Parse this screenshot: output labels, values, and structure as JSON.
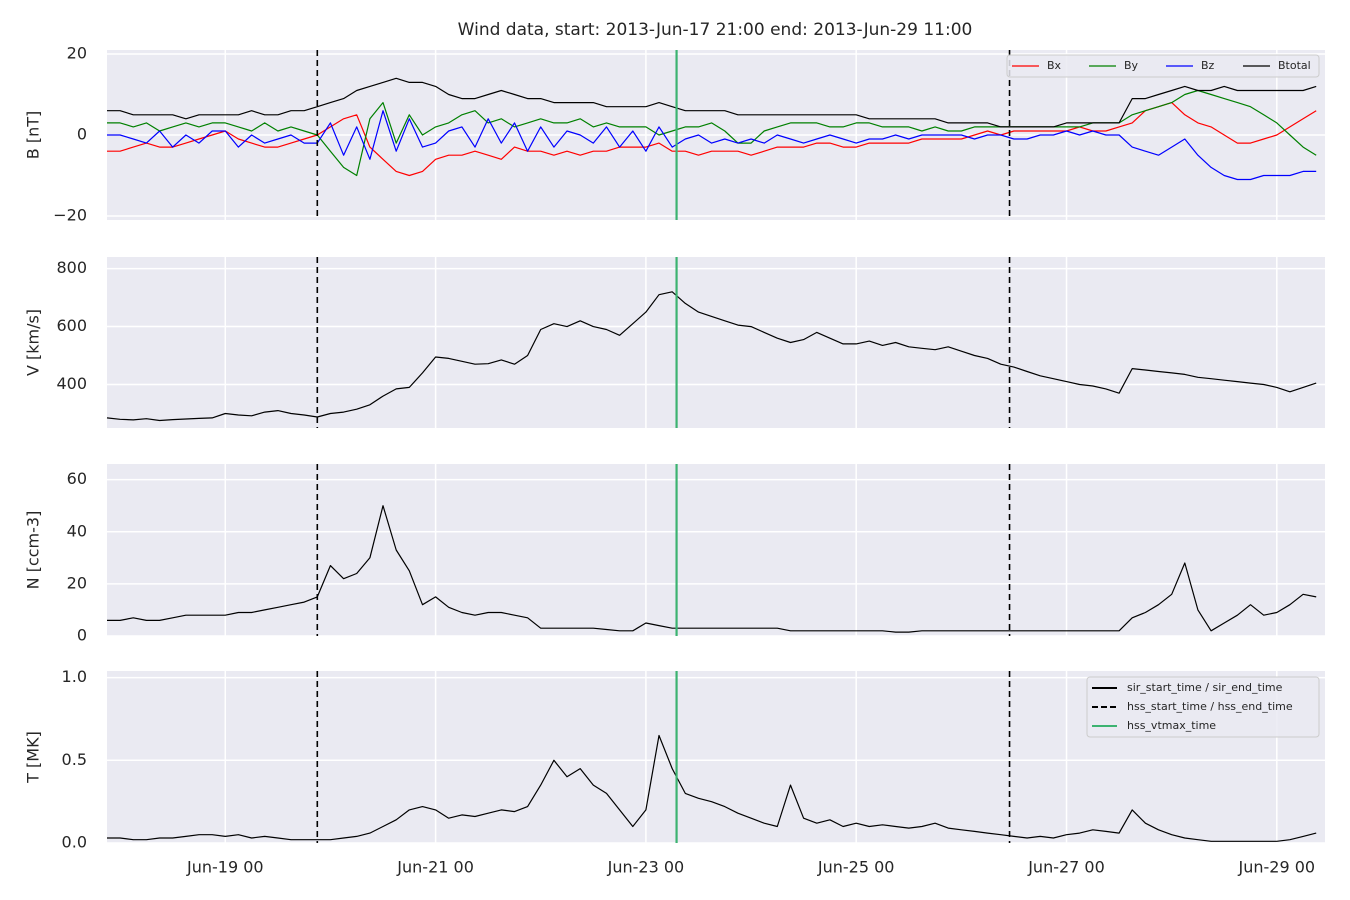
{
  "chart_data": {
    "type": "line",
    "title": "Wind data, start: 2013-Jun-17 21:00  end: 2013-Jun-29 11:00",
    "x": [
      "Jun-17 21",
      "Jun-18 00",
      "Jun-18 03",
      "Jun-18 06",
      "Jun-18 09",
      "Jun-18 12",
      "Jun-18 15",
      "Jun-18 18",
      "Jun-18 21",
      "Jun-19 00",
      "Jun-19 03",
      "Jun-19 06",
      "Jun-19 09",
      "Jun-19 12",
      "Jun-19 15",
      "Jun-19 18",
      "Jun-19 21",
      "Jun-20 00",
      "Jun-20 03",
      "Jun-20 06",
      "Jun-20 09",
      "Jun-20 12",
      "Jun-20 15",
      "Jun-20 18",
      "Jun-20 21",
      "Jun-21 00",
      "Jun-21 03",
      "Jun-21 06",
      "Jun-21 09",
      "Jun-21 12",
      "Jun-21 15",
      "Jun-21 18",
      "Jun-21 21",
      "Jun-22 00",
      "Jun-22 03",
      "Jun-22 06",
      "Jun-22 09",
      "Jun-22 12",
      "Jun-22 15",
      "Jun-22 18",
      "Jun-22 21",
      "Jun-23 00",
      "Jun-23 03",
      "Jun-23 06",
      "Jun-23 09",
      "Jun-23 12",
      "Jun-23 15",
      "Jun-23 18",
      "Jun-23 21",
      "Jun-24 00",
      "Jun-24 03",
      "Jun-24 06",
      "Jun-24 09",
      "Jun-24 12",
      "Jun-24 15",
      "Jun-24 18",
      "Jun-24 21",
      "Jun-25 00",
      "Jun-25 03",
      "Jun-25 06",
      "Jun-25 09",
      "Jun-25 12",
      "Jun-25 15",
      "Jun-25 18",
      "Jun-25 21",
      "Jun-26 00",
      "Jun-26 03",
      "Jun-26 06",
      "Jun-26 09",
      "Jun-26 12",
      "Jun-26 15",
      "Jun-26 18",
      "Jun-26 21",
      "Jun-27 00",
      "Jun-27 03",
      "Jun-27 06",
      "Jun-27 09",
      "Jun-27 12",
      "Jun-27 15",
      "Jun-27 18",
      "Jun-27 21",
      "Jun-28 00",
      "Jun-28 03",
      "Jun-28 06",
      "Jun-28 09",
      "Jun-28 12",
      "Jun-28 15",
      "Jun-28 18",
      "Jun-28 21",
      "Jun-29 00",
      "Jun-29 03",
      "Jun-29 06",
      "Jun-29 09"
    ],
    "xlim": [
      "Jun-17 21",
      "Jun-29 11"
    ],
    "xticks": [
      "Jun-19 00",
      "Jun-21 00",
      "Jun-23 00",
      "Jun-25 00",
      "Jun-27 00",
      "Jun-29 00"
    ],
    "grid": true,
    "event_lines": [
      {
        "name": "sir_start_time / sir_end_time",
        "color": "#000000",
        "style": "solid",
        "x": []
      },
      {
        "name": "hss_start_time / hss_end_time",
        "color": "#000000",
        "style": "dashed",
        "x": [
          "Jun-19 21",
          "Jun-26 11"
        ]
      },
      {
        "name": "hss_vtmax_time",
        "color": "#3cb371",
        "style": "solid",
        "x": [
          "Jun-23 07"
        ]
      }
    ],
    "panels": [
      {
        "ylabel": "B [nT]",
        "ylim": [
          -21,
          21
        ],
        "yticks": [
          {
            "value": -20,
            "label": "−20"
          },
          0,
          20
        ],
        "legend": "upper right",
        "series": [
          {
            "name": "Bx",
            "color": "#ff0000",
            "values": [
              -4,
              -4,
              -3,
              -2,
              -3,
              -3,
              -2,
              -1,
              0,
              1,
              -1,
              -2,
              -3,
              -3,
              -2,
              -1,
              0,
              2,
              4,
              5,
              -3,
              -6,
              -9,
              -10,
              -9,
              -6,
              -5,
              -5,
              -4,
              -5,
              -6,
              -3,
              -4,
              -4,
              -5,
              -4,
              -5,
              -4,
              -4,
              -3,
              -3,
              -3,
              -2,
              -4,
              -4,
              -5,
              -4,
              -4,
              -4,
              -5,
              -4,
              -3,
              -3,
              -3,
              -2,
              -2,
              -3,
              -3,
              -2,
              -2,
              -2,
              -2,
              -1,
              -1,
              -1,
              -1,
              0,
              1,
              0,
              1,
              1,
              1,
              1,
              1,
              2,
              1,
              1,
              2,
              3,
              6,
              7,
              8,
              5,
              3,
              2,
              0,
              -2,
              -2,
              -1,
              0,
              2,
              4,
              6
            ]
          },
          {
            "name": "By",
            "color": "#008000",
            "values": [
              3,
              3,
              2,
              3,
              1,
              2,
              3,
              2,
              3,
              3,
              2,
              1,
              3,
              1,
              2,
              1,
              0,
              -4,
              -8,
              -10,
              4,
              8,
              -2,
              5,
              0,
              2,
              3,
              5,
              6,
              3,
              4,
              2,
              3,
              4,
              3,
              3,
              4,
              2,
              3,
              2,
              2,
              2,
              0,
              1,
              2,
              2,
              3,
              1,
              -2,
              -2,
              1,
              2,
              3,
              3,
              3,
              2,
              2,
              3,
              3,
              2,
              2,
              2,
              1,
              2,
              1,
              1,
              2,
              2,
              2,
              2,
              2,
              2,
              2,
              2,
              2,
              3,
              3,
              3,
              5,
              6,
              7,
              8,
              10,
              11,
              10,
              9,
              8,
              7,
              5,
              3,
              0,
              -3,
              -5
            ]
          },
          {
            "name": "Bz",
            "color": "#0000ff",
            "values": [
              0,
              0,
              -1,
              -2,
              1,
              -3,
              0,
              -2,
              1,
              1,
              -3,
              0,
              -2,
              -1,
              0,
              -2,
              -2,
              3,
              -5,
              2,
              -6,
              6,
              -4,
              4,
              -3,
              -2,
              1,
              2,
              -3,
              4,
              -2,
              3,
              -4,
              2,
              -3,
              1,
              0,
              -2,
              2,
              -3,
              1,
              -4,
              2,
              -3,
              -1,
              0,
              -2,
              -1,
              -2,
              -1,
              -2,
              0,
              -1,
              -2,
              -1,
              0,
              -1,
              -2,
              -1,
              -1,
              0,
              -1,
              0,
              0,
              0,
              0,
              -1,
              0,
              0,
              -1,
              -1,
              0,
              0,
              1,
              0,
              1,
              0,
              0,
              -3,
              -4,
              -5,
              -3,
              -1,
              -5,
              -8,
              -10,
              -11,
              -11,
              -10,
              -10,
              -10,
              -9,
              -9
            ]
          },
          {
            "name": "Btotal",
            "color": "#000000",
            "values": [
              6,
              6,
              5,
              5,
              5,
              5,
              4,
              5,
              5,
              5,
              5,
              6,
              5,
              5,
              6,
              6,
              7,
              8,
              9,
              11,
              12,
              13,
              14,
              13,
              13,
              12,
              10,
              9,
              9,
              10,
              11,
              10,
              9,
              9,
              8,
              8,
              8,
              8,
              7,
              7,
              7,
              7,
              8,
              7,
              6,
              6,
              6,
              6,
              5,
              5,
              5,
              5,
              5,
              5,
              5,
              5,
              5,
              5,
              4,
              4,
              4,
              4,
              4,
              4,
              3,
              3,
              3,
              3,
              2,
              2,
              2,
              2,
              2,
              3,
              3,
              3,
              3,
              3,
              9,
              9,
              10,
              11,
              12,
              11,
              11,
              12,
              11,
              11,
              11,
              11,
              11,
              11,
              12
            ]
          }
        ]
      },
      {
        "ylabel": "V [km/s]",
        "ylim": [
          250,
          840
        ],
        "yticks": [
          400,
          600,
          800
        ],
        "series": [
          {
            "color": "#000000",
            "values": [
              285,
              280,
              278,
              282,
              276,
              279,
              281,
              283,
              285,
              300,
              295,
              292,
              305,
              310,
              300,
              295,
              288,
              300,
              305,
              315,
              330,
              360,
              385,
              390,
              440,
              495,
              490,
              480,
              470,
              472,
              485,
              470,
              500,
              590,
              610,
              600,
              620,
              600,
              590,
              570,
              610,
              650,
              710,
              720,
              680,
              650,
              635,
              620,
              605,
              600,
              580,
              560,
              545,
              555,
              580,
              560,
              540,
              540,
              550,
              535,
              545,
              530,
              525,
              520,
              530,
              515,
              500,
              490,
              470,
              460,
              445,
              430,
              420,
              410,
              400,
              395,
              385,
              370,
              455,
              450,
              445,
              440,
              435,
              425,
              420,
              415,
              410,
              405,
              400,
              390,
              375,
              390,
              405
            ]
          }
        ]
      },
      {
        "ylabel": "N [ccm-3]",
        "ylim": [
          0,
          66
        ],
        "yticks": [
          0,
          20,
          40,
          60
        ],
        "series": [
          {
            "color": "#000000",
            "values": [
              6,
              6,
              7,
              6,
              6,
              7,
              8,
              8,
              8,
              8,
              9,
              9,
              10,
              11,
              12,
              13,
              15,
              27,
              22,
              24,
              30,
              50,
              33,
              25,
              12,
              15,
              11,
              9,
              8,
              9,
              9,
              8,
              7,
              3,
              3,
              3,
              3,
              3,
              2.5,
              2,
              2,
              5,
              4,
              3,
              3,
              3,
              3,
              3,
              3,
              3,
              3,
              3,
              2,
              2,
              2,
              2,
              2,
              2,
              2,
              2,
              1.5,
              1.5,
              2,
              2,
              2,
              2,
              2,
              2,
              2,
              2,
              2,
              2,
              2,
              2,
              2,
              2,
              2,
              2,
              7,
              9,
              12,
              16,
              28,
              10,
              2,
              5,
              8,
              12,
              8,
              9,
              12,
              16,
              15
            ]
          }
        ]
      },
      {
        "ylabel": "T [MK]",
        "ylim": [
          0,
          1.04
        ],
        "yticks": [
          {
            "value": 0,
            "label": "0.0"
          },
          {
            "value": 0.5,
            "label": "0.5"
          },
          {
            "value": 1,
            "label": "1.0"
          }
        ],
        "event_legend": "upper right",
        "series": [
          {
            "color": "#000000",
            "values": [
              0.03,
              0.03,
              0.02,
              0.02,
              0.03,
              0.03,
              0.04,
              0.05,
              0.05,
              0.04,
              0.05,
              0.03,
              0.04,
              0.03,
              0.02,
              0.02,
              0.02,
              0.02,
              0.03,
              0.04,
              0.06,
              0.1,
              0.14,
              0.2,
              0.22,
              0.2,
              0.15,
              0.17,
              0.16,
              0.18,
              0.2,
              0.19,
              0.22,
              0.35,
              0.5,
              0.4,
              0.45,
              0.35,
              0.3,
              0.2,
              0.1,
              0.2,
              0.65,
              0.45,
              0.3,
              0.27,
              0.25,
              0.22,
              0.18,
              0.15,
              0.12,
              0.1,
              0.35,
              0.15,
              0.12,
              0.14,
              0.1,
              0.12,
              0.1,
              0.11,
              0.1,
              0.09,
              0.1,
              0.12,
              0.09,
              0.08,
              0.07,
              0.06,
              0.05,
              0.04,
              0.03,
              0.04,
              0.03,
              0.05,
              0.06,
              0.08,
              0.07,
              0.06,
              0.2,
              0.12,
              0.08,
              0.05,
              0.03,
              0.02,
              0.01,
              0.01,
              0.01,
              0.01,
              0.01,
              0.01,
              0.02,
              0.04,
              0.06
            ]
          }
        ]
      }
    ]
  }
}
